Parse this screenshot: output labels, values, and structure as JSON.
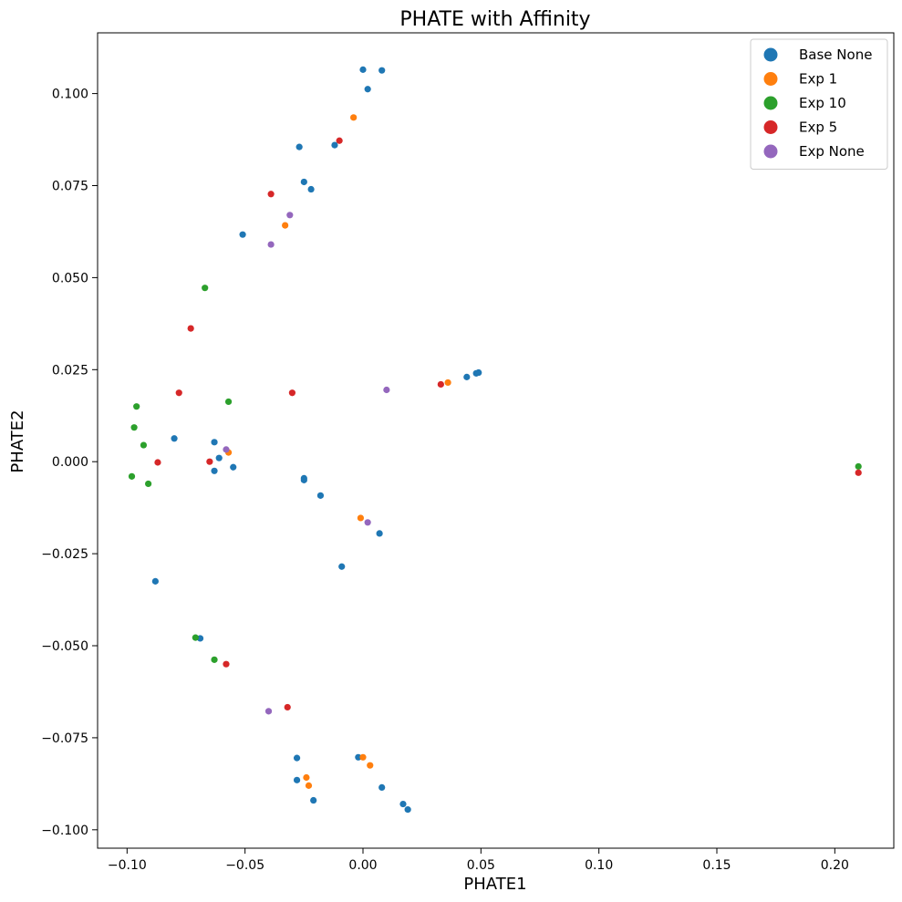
{
  "chart_data": {
    "type": "scatter",
    "title": "PHATE with Affinity",
    "xlabel": "PHATE1",
    "ylabel": "PHATE2",
    "xlim": [
      -0.1125,
      0.225
    ],
    "ylim": [
      -0.105,
      0.1165
    ],
    "xticks": [
      -0.1,
      -0.05,
      0.0,
      0.05,
      0.1,
      0.15,
      0.2
    ],
    "xtick_labels": [
      "−0.10",
      "−0.05",
      "0.00",
      "0.05",
      "0.10",
      "0.15",
      "0.20"
    ],
    "yticks": [
      -0.1,
      -0.075,
      -0.05,
      -0.025,
      0.0,
      0.025,
      0.05,
      0.075,
      0.1
    ],
    "ytick_labels": [
      "−0.100",
      "−0.075",
      "−0.050",
      "−0.025",
      "0.000",
      "0.025",
      "0.050",
      "0.075",
      "0.100"
    ],
    "grid": false,
    "legend_position": "top-right",
    "series": [
      {
        "name": "Base None",
        "color": "#1f77b4",
        "points": [
          [
            0.0,
            0.1065
          ],
          [
            0.008,
            0.1063
          ],
          [
            0.002,
            0.1012
          ],
          [
            -0.027,
            0.0855
          ],
          [
            -0.012,
            0.086
          ],
          [
            -0.025,
            0.076
          ],
          [
            -0.022,
            0.074
          ],
          [
            -0.051,
            0.0617
          ],
          [
            0.044,
            0.023
          ],
          [
            0.048,
            0.024
          ],
          [
            0.049,
            0.0242
          ],
          [
            -0.08,
            0.0063
          ],
          [
            -0.063,
            0.0053
          ],
          [
            -0.061,
            0.001
          ],
          [
            -0.063,
            -0.0025
          ],
          [
            -0.055,
            -0.0015
          ],
          [
            -0.025,
            -0.0045
          ],
          [
            -0.025,
            -0.005
          ],
          [
            -0.018,
            -0.0092
          ],
          [
            0.007,
            -0.0195
          ],
          [
            -0.009,
            -0.0285
          ],
          [
            -0.088,
            -0.0325
          ],
          [
            -0.069,
            -0.048
          ],
          [
            -0.028,
            -0.0805
          ],
          [
            -0.002,
            -0.0803
          ],
          [
            -0.028,
            -0.0865
          ],
          [
            -0.021,
            -0.092
          ],
          [
            0.008,
            -0.0885
          ],
          [
            0.017,
            -0.093
          ],
          [
            0.019,
            -0.0945
          ]
        ]
      },
      {
        "name": "Exp 1",
        "color": "#ff7f0e",
        "points": [
          [
            -0.004,
            0.0935
          ],
          [
            -0.033,
            0.0642
          ],
          [
            0.036,
            0.0215
          ],
          [
            -0.057,
            0.0025
          ],
          [
            -0.001,
            -0.0153
          ],
          [
            0.0,
            -0.0803
          ],
          [
            0.003,
            -0.0825
          ],
          [
            -0.024,
            -0.0858
          ],
          [
            -0.023,
            -0.088
          ]
        ]
      },
      {
        "name": "Exp 10",
        "color": "#2ca02c",
        "points": [
          [
            -0.067,
            0.0472
          ],
          [
            -0.096,
            0.015
          ],
          [
            -0.057,
            0.0163
          ],
          [
            -0.097,
            0.0093
          ],
          [
            -0.093,
            0.0045
          ],
          [
            -0.098,
            -0.004
          ],
          [
            -0.091,
            -0.006
          ],
          [
            -0.071,
            -0.0478
          ],
          [
            -0.063,
            -0.0538
          ],
          [
            0.21,
            -0.0013
          ]
        ]
      },
      {
        "name": "Exp 5",
        "color": "#d62728",
        "points": [
          [
            -0.01,
            0.0872
          ],
          [
            -0.039,
            0.0727
          ],
          [
            -0.073,
            0.0362
          ],
          [
            -0.078,
            0.0187
          ],
          [
            -0.03,
            0.0187
          ],
          [
            0.033,
            0.021
          ],
          [
            -0.087,
            -0.0002
          ],
          [
            -0.065,
            0.0
          ],
          [
            -0.058,
            -0.055
          ],
          [
            -0.032,
            -0.0667
          ],
          [
            0.21,
            -0.003
          ]
        ]
      },
      {
        "name": "Exp None",
        "color": "#9467bd",
        "points": [
          [
            -0.031,
            0.067
          ],
          [
            -0.039,
            0.059
          ],
          [
            0.01,
            0.0195
          ],
          [
            -0.058,
            0.0033
          ],
          [
            0.002,
            -0.0165
          ],
          [
            -0.04,
            -0.0678
          ]
        ]
      }
    ]
  }
}
